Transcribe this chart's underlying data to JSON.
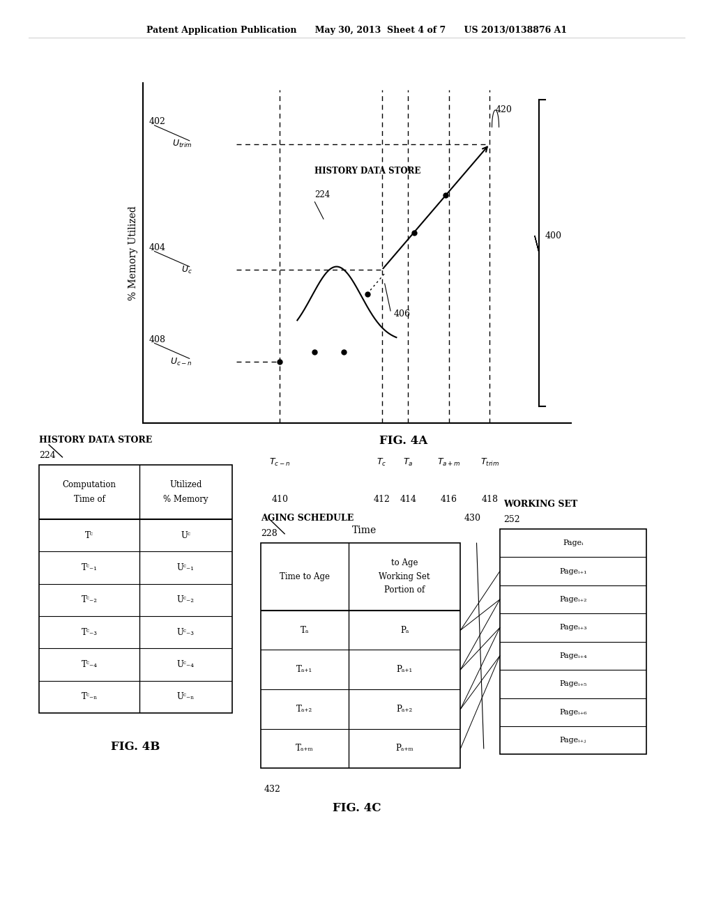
{
  "bg_color": "#ffffff",
  "header_text": "Patent Application Publication      May 30, 2013  Sheet 4 of 7      US 2013/0138876 A1",
  "fig4a_label": "FIG. 4A",
  "fig4b_label": "FIG. 4B",
  "fig4c_label": "FIG. 4C",
  "graph": {
    "ylabel": "% Memory Utilized",
    "xlabel": "Time"
  },
  "table4b": {
    "title": "HISTORY DATA STORE",
    "label": "224",
    "rows": [
      [
        "Tᶜ",
        "Uᶜ"
      ],
      [
        "Tᶜ₋₁",
        "Uᶜ₋₁"
      ],
      [
        "Tᶜ₋₂",
        "Uᶜ₋₂"
      ],
      [
        "Tᶜ₋₃",
        "Uᶜ₋₃"
      ],
      [
        "Tᶜ₋₄",
        "Uᶜ₋₄"
      ],
      [
        "Tᶜ₋ₙ",
        "Uᶜ₋ₙ"
      ]
    ]
  },
  "table4c_aging": {
    "title": "AGING SCHEDULE",
    "label": "228",
    "rows": [
      [
        "Tₐ",
        "Pₐ"
      ],
      [
        "Tₐ₊₁",
        "Pₐ₊₁"
      ],
      [
        "Tₐ₊₂",
        "Pₐ₊₂"
      ],
      [
        "Tₐ₊ₘ",
        "Pₐ₊ₘ"
      ]
    ]
  },
  "table4c_working": {
    "title": "WORKING SET",
    "label": "252",
    "pages": [
      "Pageᵢ",
      "Pageᵢ₊₁",
      "Pageᵢ₊₂",
      "Pageᵢ₊₃",
      "Pageᵢ₊₄",
      "Pageᵢ₊₅",
      "Pageᵢ₊₆",
      "Pageᵢ₊ⱼ"
    ]
  }
}
